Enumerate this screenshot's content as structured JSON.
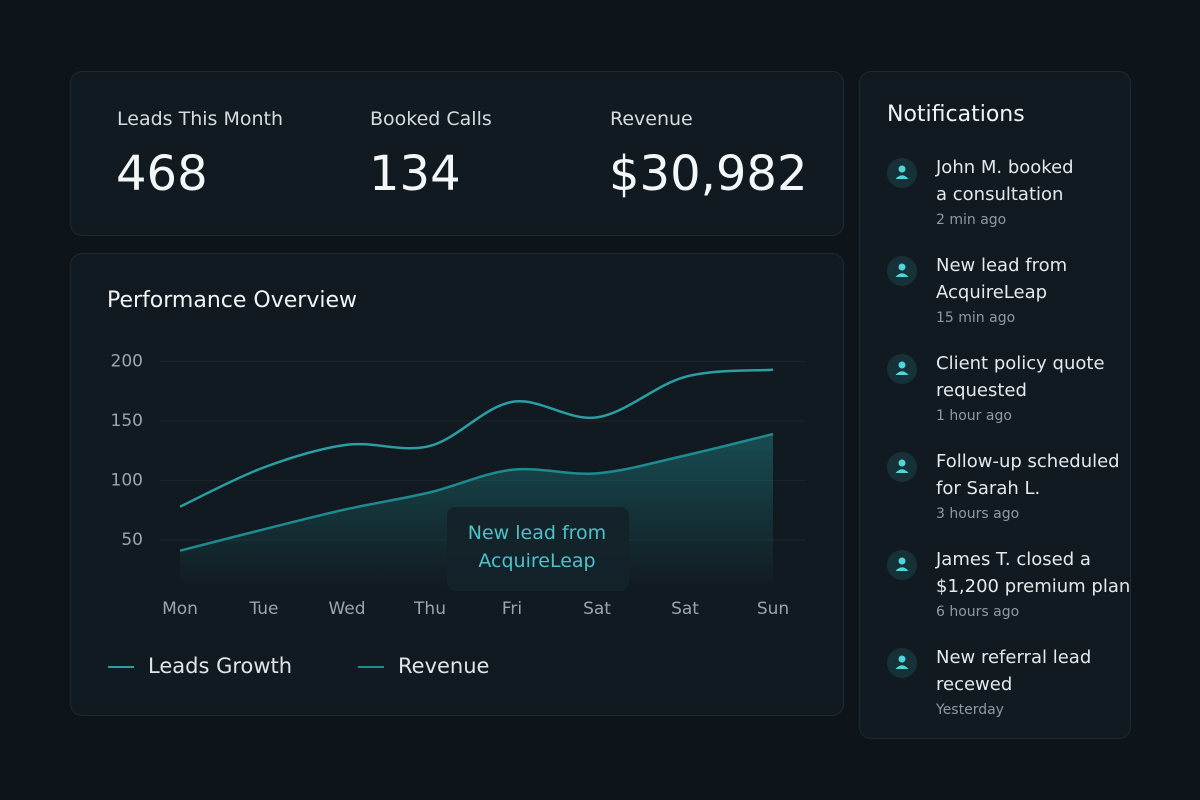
{
  "stats": [
    {
      "label": "Leads This Month",
      "value": "468"
    },
    {
      "label": "Booked Calls",
      "value": "134"
    },
    {
      "label": "Revenue",
      "value": "$30,982"
    }
  ],
  "chart_data": {
    "type": "line",
    "title": "Performance Overview",
    "categories": [
      "Mon",
      "Tue",
      "Wed",
      "Thu",
      "Fri",
      "Sat",
      "Sat",
      "Sun"
    ],
    "series": [
      {
        "name": "Leads Growth",
        "color": "#2a9ea3",
        "values": [
          78,
          111,
          130,
          129,
          166,
          153,
          187,
          193
        ]
      },
      {
        "name": "Revenue",
        "color": "#1f8a8f",
        "values": [
          41,
          59,
          76,
          90,
          109,
          106,
          121,
          139
        ],
        "area": true
      }
    ],
    "ylim": [
      8,
      218
    ],
    "yticks": [
      50,
      100,
      150,
      200
    ],
    "grid": true,
    "annotation": "New lead from AcquireLeap"
  },
  "notifications": {
    "title": "Notifications",
    "items": [
      {
        "lines": [
          "John M. booked",
          "a consultation"
        ],
        "time": "2 min ago"
      },
      {
        "lines": [
          "New lead from",
          "AcquireLeap"
        ],
        "time": "15 min ago"
      },
      {
        "lines": [
          "Client policy quote",
          "requested"
        ],
        "time": "1 hour ago"
      },
      {
        "lines": [
          "Follow-up scheduled",
          "for Sarah L."
        ],
        "time": "3 hours ago"
      },
      {
        "lines": [
          "James T. closed a",
          "$1,200 premium plan"
        ],
        "time": "6 hours ago"
      },
      {
        "lines": [
          "New referral lead",
          "recewed"
        ],
        "time": "Yesterday"
      }
    ]
  }
}
